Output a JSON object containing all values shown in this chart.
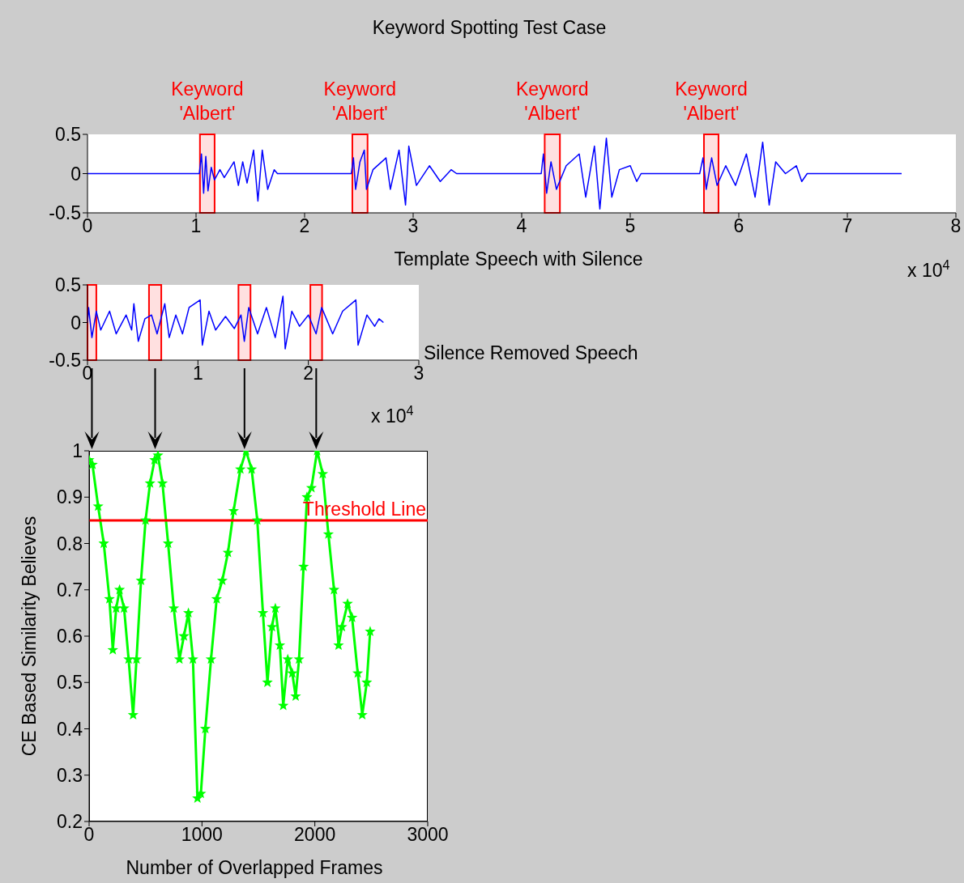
{
  "chart_data": [
    {
      "type": "line",
      "title": "Keyword Spotting Test Case",
      "xlabel": "Template Speech with Silence",
      "annotations": [
        "x 10$^{4}$"
      ],
      "marker": "none",
      "x": [
        0,
        1.03,
        1.05,
        1.07,
        1.09,
        1.11,
        1.14,
        1.17,
        1.22,
        1.26,
        1.35,
        1.39,
        1.43,
        1.47,
        1.53,
        1.57,
        1.61,
        1.66,
        1.72,
        1.75,
        2.43,
        2.45,
        2.47,
        2.51,
        2.55,
        2.57,
        2.63,
        2.75,
        2.79,
        2.87,
        2.93,
        2.96,
        3.03,
        3.15,
        3.25,
        3.35,
        3.4,
        4.18,
        4.2,
        4.23,
        4.27,
        4.32,
        4.41,
        4.53,
        4.59,
        4.67,
        4.72,
        4.78,
        4.83,
        4.9,
        5,
        5.06,
        5.1,
        5.64,
        5.67,
        5.7,
        5.75,
        5.8,
        5.88,
        5.97,
        6.07,
        6.15,
        6.22,
        6.28,
        6.34,
        6.43,
        6.53,
        6.58,
        6.63,
        7.5
      ],
      "series": [
        {
          "color": "#0000ff",
          "values": [
            0,
            0,
            0.25,
            -0.25,
            0.22,
            -0.22,
            0.08,
            -0.08,
            0.05,
            -0.05,
            0.15,
            -0.15,
            0.15,
            -0.12,
            0.3,
            -0.35,
            0.3,
            -0.2,
            0.05,
            0,
            0,
            0.2,
            -0.2,
            0.15,
            0.3,
            -0.2,
            0.05,
            0.2,
            -0.2,
            0.3,
            -0.4,
            0.35,
            -0.15,
            0.1,
            -0.1,
            0.05,
            0,
            0,
            0.25,
            -0.25,
            0.15,
            -0.2,
            0.1,
            0.25,
            -0.3,
            0.35,
            -0.45,
            0.45,
            -0.3,
            0.05,
            0.1,
            -0.1,
            0,
            0,
            0.2,
            -0.2,
            0.2,
            -0.15,
            0.1,
            -0.15,
            0.25,
            -0.3,
            0.4,
            -0.4,
            0.15,
            0,
            0.1,
            -0.1,
            0,
            0
          ]
        }
      ],
      "xlim": [
        0,
        8
      ],
      "xticks": [
        0,
        1,
        2,
        3,
        4,
        5,
        6,
        7,
        8
      ],
      "ylim": [
        -0.5,
        0.5
      ],
      "yticks": [
        -0.5,
        0,
        0.5
      ],
      "bands": [
        {
          "axis": "x",
          "from": 1.036,
          "to": 1.171,
          "label": "Keyword 'Albert'",
          "color": "#ff0000"
        },
        {
          "axis": "x",
          "from": 2.44,
          "to": 2.58,
          "label": "Keyword 'Albert'",
          "color": "#ff0000"
        },
        {
          "axis": "x",
          "from": 4.212,
          "to": 4.352,
          "label": "Keyword 'Albert'",
          "color": "#ff0000"
        },
        {
          "axis": "x",
          "from": 5.679,
          "to": 5.813,
          "label": "Keyword 'Albert'",
          "color": "#ff0000"
        }
      ]
    },
    {
      "type": "line",
      "xlabel": "Silence Removed Speech",
      "annotations": [
        "x 10$^{4}$"
      ],
      "marker": "none",
      "x": [
        0,
        0.01,
        0.04,
        0.08,
        0.12,
        0.2,
        0.26,
        0.35,
        0.4,
        0.42,
        0.46,
        0.52,
        0.58,
        0.63,
        0.7,
        0.74,
        0.8,
        0.86,
        0.92,
        1.02,
        1.04,
        1.1,
        1.16,
        1.25,
        1.33,
        1.39,
        1.42,
        1.46,
        1.54,
        1.62,
        1.7,
        1.77,
        1.79,
        1.85,
        1.92,
        2,
        2.07,
        2.12,
        2.22,
        2.31,
        2.43,
        2.45,
        2.53,
        2.6,
        2.64,
        2.68
      ],
      "series": [
        {
          "color": "#0000ff",
          "values": [
            0,
            0.2,
            -0.2,
            0.15,
            -0.1,
            0.15,
            -0.15,
            0.1,
            -0.1,
            0.25,
            -0.25,
            0.05,
            0.1,
            -0.15,
            0.25,
            -0.2,
            0.1,
            -0.15,
            0.2,
            0.3,
            -0.3,
            0.15,
            -0.1,
            0.08,
            -0.08,
            0.1,
            -0.25,
            0.2,
            -0.15,
            0.2,
            -0.2,
            0.35,
            -0.35,
            0.15,
            -0.05,
            0.1,
            -0.15,
            0.2,
            -0.15,
            0.15,
            0.3,
            -0.3,
            0.1,
            -0.05,
            0.05,
            0
          ]
        }
      ],
      "xlim": [
        0,
        3
      ],
      "xticks": [
        0,
        1,
        2,
        3
      ],
      "ylim": [
        -0.5,
        0.5
      ],
      "yticks": [
        -0.5,
        0,
        0.5
      ],
      "bands": [
        {
          "axis": "x",
          "from": 0,
          "to": 0.08,
          "color": "#ff0000"
        },
        {
          "axis": "x",
          "from": 0.557,
          "to": 0.668,
          "color": "#ff0000"
        },
        {
          "axis": "x",
          "from": 1.367,
          "to": 1.476,
          "color": "#ff0000"
        },
        {
          "axis": "x",
          "from": 2.018,
          "to": 2.124,
          "color": "#ff0000"
        }
      ]
    },
    {
      "type": "line",
      "xlabel": "Number of Overlapped Frames",
      "ylabel": "CE Based Similarity Believes",
      "marker": "star",
      "x": [
        0,
        30,
        80,
        130,
        180,
        210,
        240,
        270,
        310,
        350,
        390,
        420,
        460,
        500,
        540,
        580,
        610,
        650,
        700,
        750,
        800,
        840,
        880,
        920,
        960,
        990,
        1030,
        1080,
        1130,
        1180,
        1230,
        1280,
        1340,
        1390,
        1440,
        1490,
        1540,
        1580,
        1620,
        1650,
        1690,
        1720,
        1760,
        1800,
        1830,
        1860,
        1900,
        1930,
        1970,
        2020,
        2070,
        2120,
        2170,
        2210,
        2240,
        2290,
        2330,
        2380,
        2420,
        2460,
        2490
      ],
      "series": [
        {
          "color": "#00ff00",
          "values": [
            0.98,
            0.97,
            0.88,
            0.8,
            0.68,
            0.57,
            0.66,
            0.7,
            0.66,
            0.55,
            0.43,
            0.55,
            0.72,
            0.85,
            0.93,
            0.98,
            0.99,
            0.93,
            0.8,
            0.66,
            0.55,
            0.6,
            0.65,
            0.55,
            0.25,
            0.26,
            0.4,
            0.55,
            0.68,
            0.72,
            0.78,
            0.87,
            0.96,
            1,
            0.96,
            0.85,
            0.65,
            0.5,
            0.62,
            0.66,
            0.58,
            0.45,
            0.55,
            0.52,
            0.47,
            0.55,
            0.75,
            0.9,
            0.92,
            1,
            0.95,
            0.82,
            0.7,
            0.58,
            0.62,
            0.67,
            0.64,
            0.52,
            0.43,
            0.5,
            0.61
          ]
        }
      ],
      "xlim": [
        0,
        3000
      ],
      "xticks": [
        0,
        1000,
        2000,
        3000
      ],
      "ylim": [
        0.2,
        1
      ],
      "yticks": [
        0.2,
        0.3,
        0.4,
        0.5,
        0.6,
        0.7,
        0.8,
        0.9,
        1
      ],
      "ref_lines": [
        {
          "axis": "y",
          "value": 0.85,
          "label": "Threshold Line",
          "color": "#ff0000"
        }
      ]
    }
  ]
}
